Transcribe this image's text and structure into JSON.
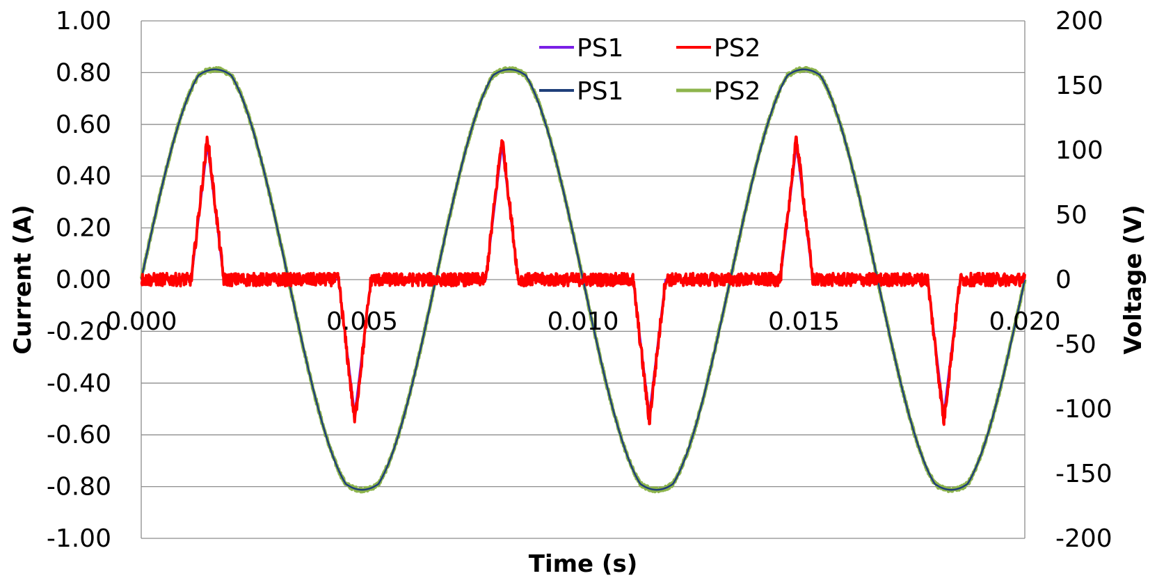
{
  "chart_data": {
    "type": "line",
    "xlabel": "Time (s)",
    "ylabel_left": "Current (A)",
    "ylabel_right": "Voltage (V)",
    "xlim": [
      0,
      0.02
    ],
    "ylim_left": [
      -1.0,
      1.0
    ],
    "ylim_right": [
      -200,
      200
    ],
    "x_ticks": [
      "0.000",
      "0.005",
      "0.010",
      "0.015",
      "0.020"
    ],
    "y_left_ticks": [
      "1.00",
      "0.80",
      "0.60",
      "0.40",
      "0.20",
      "0.00",
      "-0.20",
      "-0.40",
      "-0.60",
      "-0.80",
      "-1.00"
    ],
    "y_right_ticks": [
      "200",
      "150",
      "100",
      "50",
      "0",
      "-50",
      "-100",
      "-150",
      "-200"
    ],
    "grid": true,
    "legend_position": "top-center",
    "waveform": {
      "frequency_hz": 150,
      "voltage_amplitude_v": 168,
      "current_pulse_peak_a": 0.55
    },
    "series": [
      {
        "name": "PS1",
        "axis": "left",
        "quantity": "current",
        "color": "#7a1fe6",
        "peak": 0.52
      },
      {
        "name": "PS2",
        "axis": "left",
        "quantity": "current",
        "color": "#ff0000",
        "peak": 0.55
      },
      {
        "name": "PS1",
        "axis": "right",
        "quantity": "voltage",
        "color": "#1f3f7a",
        "amplitude": 168
      },
      {
        "name": "PS2",
        "axis": "right",
        "quantity": "voltage",
        "color": "#8db44c",
        "amplitude": 168
      }
    ]
  }
}
